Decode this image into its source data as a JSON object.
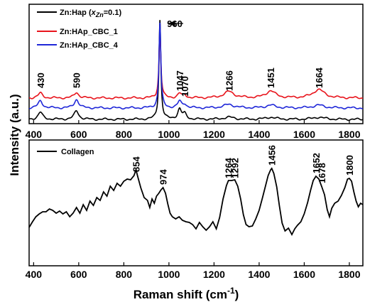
{
  "chart_data": {
    "type": "line",
    "xlabel_main": "Raman shift (cm",
    "xlabel_sup": "-1",
    "xlabel_close": ")",
    "ylabel": "Intensity (a.u.)",
    "xlim": [
      380,
      1860
    ],
    "xticks": [
      "400",
      "600",
      "800",
      "1000",
      "1200",
      "1400",
      "1600",
      "1800"
    ],
    "xtick_values": [
      400,
      600,
      800,
      1000,
      1200,
      1400,
      1600,
      1800
    ],
    "panels": [
      {
        "legend_position": "top-left",
        "series": [
          {
            "name_prefix": "Zn:Hap (",
            "name_var": "x",
            "name_sub": "Zn",
            "name_suffix": "=0.1)",
            "color": "#000000",
            "peaks": [
              [
                430,
                10
              ],
              [
                590,
                12
              ],
              [
                960,
                140
              ],
              [
                1047,
                14
              ],
              [
                1070,
                7
              ],
              [
                1266,
                3
              ],
              [
                1451,
                3
              ],
              [
                1664,
                3
              ]
            ]
          },
          {
            "name": "Zn:HAp_CBC_1",
            "color": "#e8141c",
            "peaks": [
              [
                430,
                7
              ],
              [
                590,
                8
              ],
              [
                960,
                95
              ],
              [
                1047,
                6
              ],
              [
                1070,
                4
              ],
              [
                1266,
                9
              ],
              [
                1451,
                10
              ],
              [
                1664,
                12
              ]
            ]
          },
          {
            "name": "Zn:HAp_CBC_4",
            "color": "#1f27d8",
            "peaks": [
              [
                430,
                10
              ],
              [
                590,
                12
              ],
              [
                960,
                120
              ],
              [
                1047,
                9
              ],
              [
                1070,
                5
              ],
              [
                1266,
                5
              ],
              [
                1451,
                4
              ],
              [
                1664,
                4
              ]
            ]
          }
        ],
        "annotations": [
          {
            "x": 430,
            "label": "430"
          },
          {
            "x": 590,
            "label": "590"
          },
          {
            "x": 960,
            "label": "960"
          },
          {
            "x": 1047,
            "label": "1047"
          },
          {
            "x": 1070,
            "label": "1070"
          },
          {
            "x": 1266,
            "label": "1266"
          },
          {
            "x": 1451,
            "label": "1451"
          },
          {
            "x": 1664,
            "label": "1664"
          }
        ]
      },
      {
        "legend_position": "top-left",
        "series": [
          {
            "name": "Collagen",
            "color": "#000000",
            "points": [
              [
                380,
                320
              ],
              [
                395,
                312
              ],
              [
                410,
                305
              ],
              [
                425,
                301
              ],
              [
                440,
                298
              ],
              [
                455,
                298
              ],
              [
                470,
                294
              ],
              [
                485,
                296
              ],
              [
                500,
                300
              ],
              [
                515,
                297
              ],
              [
                530,
                301
              ],
              [
                545,
                298
              ],
              [
                560,
                305
              ],
              [
                575,
                300
              ],
              [
                590,
                292
              ],
              [
                605,
                300
              ],
              [
                620,
                288
              ],
              [
                635,
                296
              ],
              [
                650,
                283
              ],
              [
                665,
                289
              ],
              [
                680,
                278
              ],
              [
                695,
                282
              ],
              [
                710,
                270
              ],
              [
                725,
                276
              ],
              [
                740,
                262
              ],
              [
                755,
                268
              ],
              [
                770,
                258
              ],
              [
                785,
                262
              ],
              [
                800,
                255
              ],
              [
                815,
                252
              ],
              [
                830,
                253
              ],
              [
                845,
                247
              ],
              [
                854,
                239
              ],
              [
                862,
                249
              ],
              [
                875,
                264
              ],
              [
                890,
                278
              ],
              [
                905,
                282
              ],
              [
                915,
                292
              ],
              [
                925,
                280
              ],
              [
                935,
                286
              ],
              [
                945,
                276
              ],
              [
                955,
                272
              ],
              [
                965,
                267
              ],
              [
                974,
                264
              ],
              [
                985,
                272
              ],
              [
                995,
                287
              ],
              [
                1005,
                300
              ],
              [
                1015,
                305
              ],
              [
                1030,
                308
              ],
              [
                1045,
                305
              ],
              [
                1060,
                310
              ],
              [
                1075,
                312
              ],
              [
                1090,
                313
              ],
              [
                1105,
                316
              ],
              [
                1120,
                322
              ],
              [
                1135,
                313
              ],
              [
                1150,
                319
              ],
              [
                1165,
                324
              ],
              [
                1180,
                319
              ],
              [
                1195,
                312
              ],
              [
                1210,
                322
              ],
              [
                1225,
                306
              ],
              [
                1240,
                280
              ],
              [
                1255,
                261
              ],
              [
                1264,
                254
              ],
              [
                1278,
                254
              ],
              [
                1292,
                253
              ],
              [
                1305,
                262
              ],
              [
                1318,
                280
              ],
              [
                1330,
                302
              ],
              [
                1342,
                316
              ],
              [
                1355,
                319
              ],
              [
                1370,
                318
              ],
              [
                1385,
                308
              ],
              [
                1400,
                296
              ],
              [
                1415,
                278
              ],
              [
                1428,
                262
              ],
              [
                1440,
                247
              ],
              [
                1451,
                239
              ],
              [
                1456,
                237
              ],
              [
                1465,
                244
              ],
              [
                1478,
                263
              ],
              [
                1490,
                290
              ],
              [
                1502,
                314
              ],
              [
                1515,
                325
              ],
              [
                1530,
                321
              ],
              [
                1545,
                330
              ],
              [
                1558,
                322
              ],
              [
                1570,
                317
              ],
              [
                1585,
                312
              ],
              [
                1600,
                301
              ],
              [
                1615,
                285
              ],
              [
                1628,
                268
              ],
              [
                1640,
                254
              ],
              [
                1652,
                248
              ],
              [
                1665,
                252
              ],
              [
                1678,
                263
              ],
              [
                1690,
                274
              ],
              [
                1702,
                295
              ],
              [
                1712,
                305
              ],
              [
                1722,
                293
              ],
              [
                1735,
                286
              ],
              [
                1750,
                283
              ],
              [
                1765,
                275
              ],
              [
                1780,
                264
              ],
              [
                1792,
                252
              ],
              [
                1800,
                251
              ],
              [
                1810,
                255
              ],
              [
                1820,
                270
              ],
              [
                1830,
                283
              ],
              [
                1840,
                291
              ],
              [
                1850,
                286
              ],
              [
                1860,
                288
              ]
            ],
            "peaks": [
              [
                854,
                0
              ],
              [
                974,
                0
              ],
              [
                1264,
                0
              ],
              [
                1292,
                0
              ],
              [
                1456,
                0
              ],
              [
                1652,
                0
              ],
              [
                1678,
                0
              ],
              [
                1800,
                0
              ]
            ]
          }
        ],
        "annotations": [
          {
            "x": 854,
            "label": "854"
          },
          {
            "x": 974,
            "label": "974"
          },
          {
            "x": 1264,
            "label": "1264"
          },
          {
            "x": 1292,
            "label": "1292"
          },
          {
            "x": 1456,
            "label": "1456"
          },
          {
            "x": 1652,
            "label": "1652"
          },
          {
            "x": 1678,
            "label": "1678"
          },
          {
            "x": 1800,
            "label": "1800"
          }
        ]
      }
    ]
  }
}
